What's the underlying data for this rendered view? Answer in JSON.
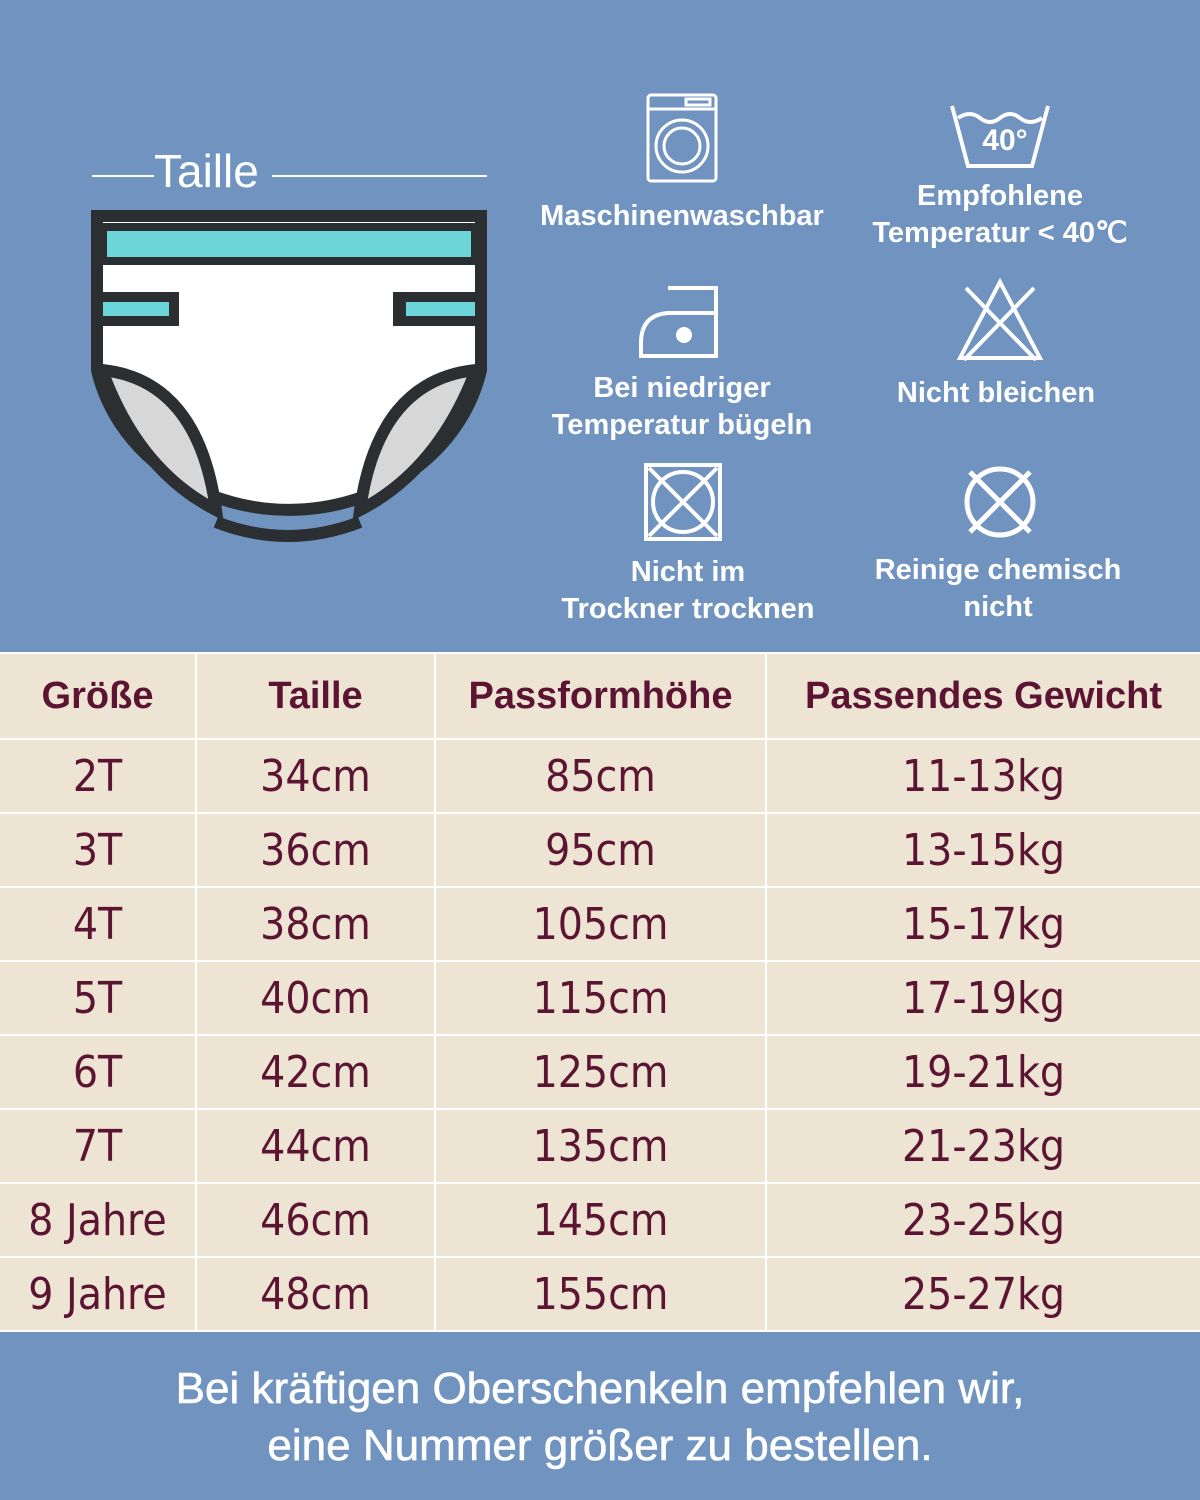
{
  "colors": {
    "background": "#7093c0",
    "table_bg": "#ede4d3",
    "table_text": "#5c1433",
    "accent_teal": "#6cd5da"
  },
  "diagram": {
    "label": "Taille"
  },
  "care": [
    {
      "icon": "washing-machine-icon",
      "label_lines": [
        "Maschinenwaschbar"
      ]
    },
    {
      "icon": "wash-40-icon",
      "icon_text": "40°",
      "label_lines": [
        "Empfohlene",
        "Temperatur < 40℃"
      ]
    },
    {
      "icon": "iron-low-icon",
      "label_lines": [
        "Bei niedriger",
        "Temperatur bügeln"
      ]
    },
    {
      "icon": "no-bleach-icon",
      "label_lines": [
        "Nicht bleichen"
      ]
    },
    {
      "icon": "no-tumble-dry-icon",
      "label_lines": [
        "Nicht im",
        "Trockner trocknen"
      ]
    },
    {
      "icon": "no-dry-clean-icon",
      "label_lines": [
        "Reinige chemisch",
        "nicht"
      ]
    }
  ],
  "table": {
    "headers": [
      "Größe",
      "Taille",
      "Passformhöhe",
      "Passendes Gewicht"
    ],
    "rows": [
      [
        "2T",
        "34cm",
        "85cm",
        "11-13kg"
      ],
      [
        "3T",
        "36cm",
        "95cm",
        "13-15kg"
      ],
      [
        "4T",
        "38cm",
        "105cm",
        "15-17kg"
      ],
      [
        "5T",
        "40cm",
        "115cm",
        "17-19kg"
      ],
      [
        "6T",
        "42cm",
        "125cm",
        "19-21kg"
      ],
      [
        "7T",
        "44cm",
        "135cm",
        "21-23kg"
      ],
      [
        "8 Jahre",
        "46cm",
        "145cm",
        "23-25kg"
      ],
      [
        "9 Jahre",
        "48cm",
        "155cm",
        "25-27kg"
      ]
    ]
  },
  "footer": {
    "lines": [
      "Bei kräftigen Oberschenkeln empfehlen wir,",
      "eine Nummer größer zu bestellen."
    ]
  }
}
